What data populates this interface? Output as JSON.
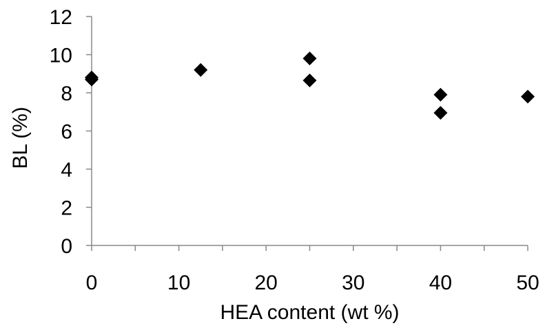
{
  "chart_data": {
    "type": "scatter",
    "xlabel": "HEA content (wt %)",
    "ylabel": "BL (%)",
    "xlim": [
      0,
      50
    ],
    "ylim": [
      0,
      12
    ],
    "xticks": [
      0,
      10,
      20,
      30,
      40,
      50
    ],
    "yticks": [
      0,
      2,
      4,
      6,
      8,
      10,
      12
    ],
    "x_minor_tick_interval": 5,
    "grid": false,
    "legend": "none",
    "marker": "diamond",
    "marker_color": "#000000",
    "series": [
      {
        "points": [
          {
            "x": 0,
            "y": 8.7
          },
          {
            "x": 0,
            "y": 8.8
          },
          {
            "x": 12.5,
            "y": 9.2
          },
          {
            "x": 25,
            "y": 9.8
          },
          {
            "x": 25,
            "y": 8.65
          },
          {
            "x": 40,
            "y": 7.9
          },
          {
            "x": 40,
            "y": 6.95
          },
          {
            "x": 50,
            "y": 7.8
          }
        ]
      }
    ]
  }
}
